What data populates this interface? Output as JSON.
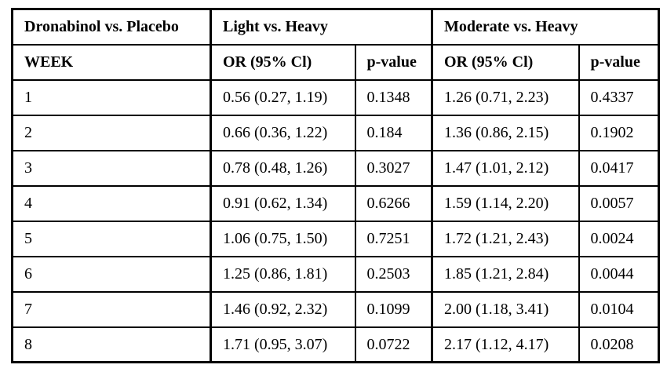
{
  "colors": {
    "border": "#000000",
    "background": "#ffffff",
    "text": "#000000"
  },
  "table": {
    "header_row1": {
      "comparison_label": "Dronabinol vs. Placebo",
      "group1_label": "Light vs. Heavy",
      "group2_label": "Moderate vs. Heavy"
    },
    "header_row2": {
      "week_label": "WEEK",
      "group1_or_label": "OR (95% Cl)",
      "group1_p_label": "p-value",
      "group2_or_label": "OR (95% Cl)",
      "group2_p_label": "p-value"
    },
    "rows": [
      {
        "week": "1",
        "light_or": "0.56 (0.27, 1.19)",
        "light_p": "0.1348",
        "moderate_or": "1.26 (0.71, 2.23)",
        "moderate_p": "0.4337"
      },
      {
        "week": "2",
        "light_or": "0.66 (0.36, 1.22)",
        "light_p": "0.184",
        "moderate_or": "1.36 (0.86, 2.15)",
        "moderate_p": "0.1902"
      },
      {
        "week": "3",
        "light_or": "0.78 (0.48, 1.26)",
        "light_p": "0.3027",
        "moderate_or": "1.47 (1.01, 2.12)",
        "moderate_p": "0.0417"
      },
      {
        "week": "4",
        "light_or": "0.91 (0.62, 1.34)",
        "light_p": "0.6266",
        "moderate_or": "1.59 (1.14, 2.20)",
        "moderate_p": "0.0057"
      },
      {
        "week": "5",
        "light_or": "1.06 (0.75, 1.50)",
        "light_p": "0.7251",
        "moderate_or": "1.72 (1.21, 2.43)",
        "moderate_p": "0.0024"
      },
      {
        "week": "6",
        "light_or": "1.25 (0.86, 1.81)",
        "light_p": "0.2503",
        "moderate_or": "1.85 (1.21, 2.84)",
        "moderate_p": "0.0044"
      },
      {
        "week": "7",
        "light_or": "1.46 (0.92, 2.32)",
        "light_p": "0.1099",
        "moderate_or": "2.00 (1.18, 3.41)",
        "moderate_p": "0.0104"
      },
      {
        "week": "8",
        "light_or": "1.71 (0.95, 3.07)",
        "light_p": "0.0722",
        "moderate_or": "2.17 (1.12, 4.17)",
        "moderate_p": "0.0208"
      }
    ]
  }
}
